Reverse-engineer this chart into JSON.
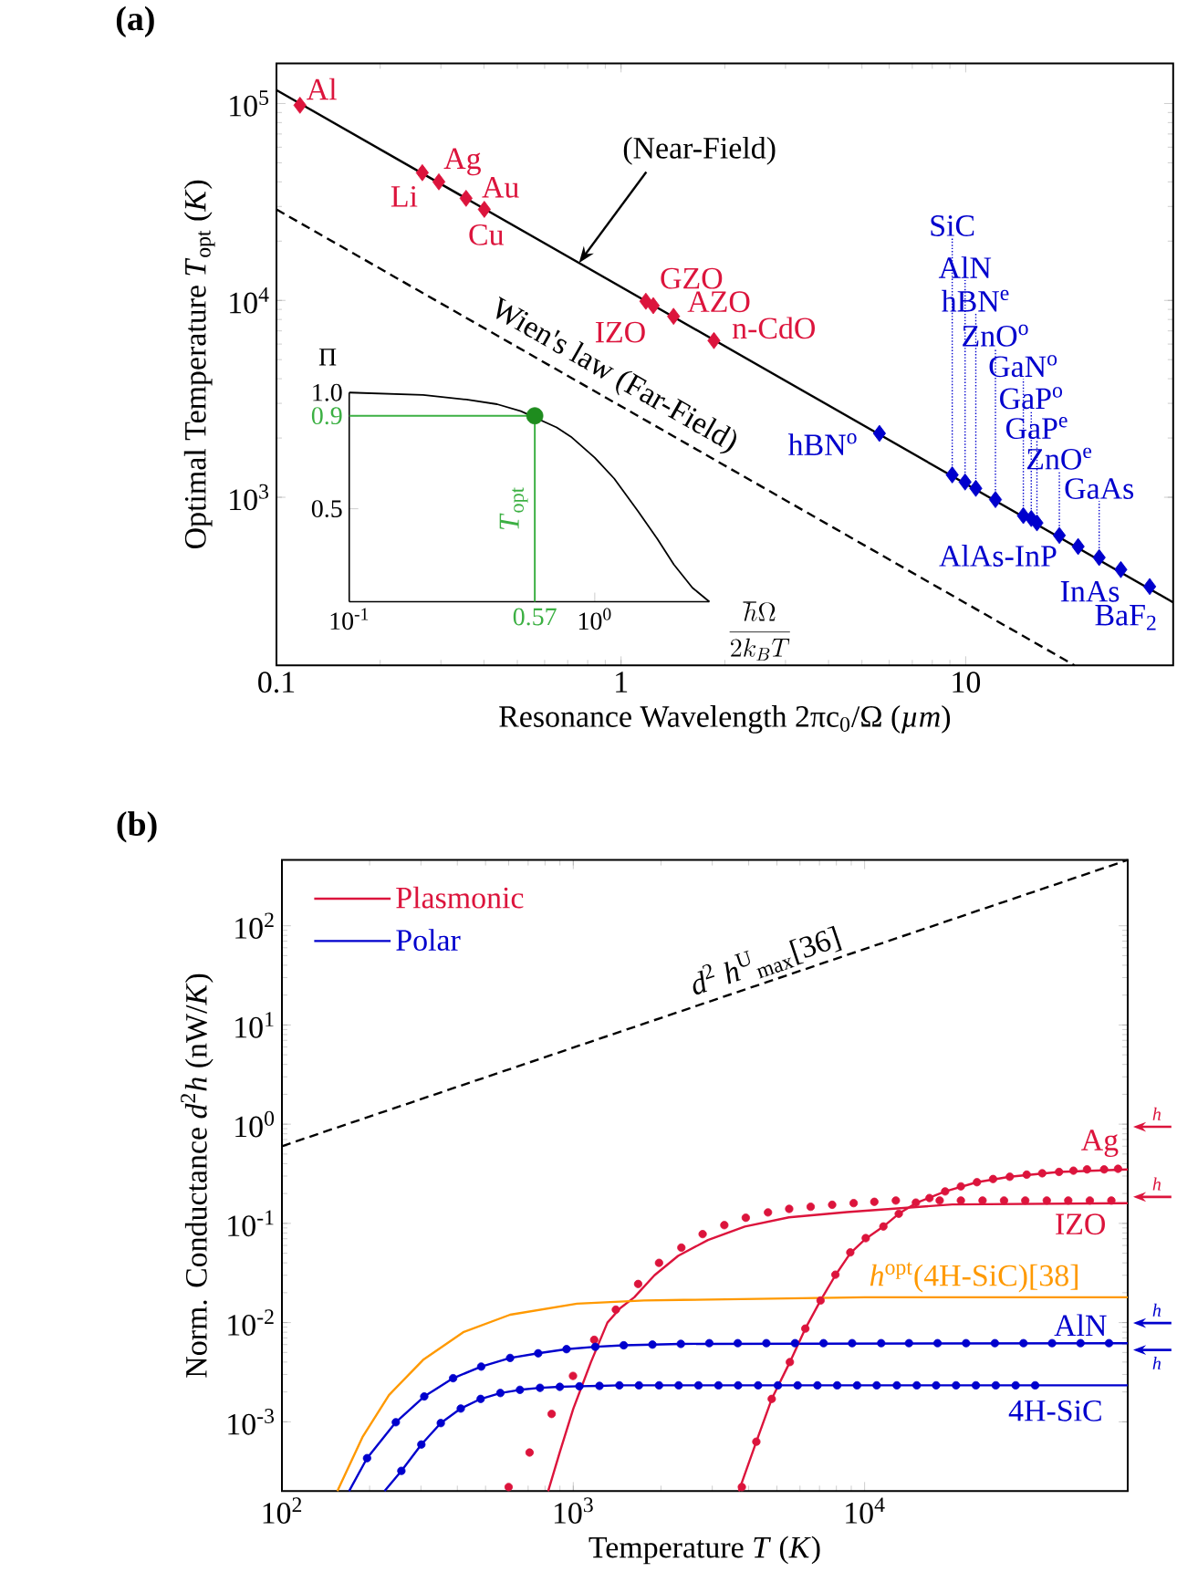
{
  "chart_data": [
    {
      "type": "scatter",
      "title": "(a)",
      "xlabel": "Resonance Wavelength 2πc$_{0}$/Ω (*µm*)",
      "ylabel": "Optimal Temperature *T*$_{opt}$ (*K*)",
      "log": "xy",
      "xlim": [
        0.1,
        40
      ],
      "ylim": [
        140,
        160000
      ],
      "xticks": [
        {
          "value": 0.1,
          "label": "0.1"
        },
        {
          "value": 1,
          "label": "1"
        },
        {
          "value": 10,
          "label": "10"
        }
      ],
      "yticks": [
        {
          "value": 1000,
          "label": "10$^{3}$"
        },
        {
          "value": 10000,
          "label": "10$^{4}$"
        },
        {
          "value": 100000,
          "label": "10$^{5}$"
        }
      ],
      "series": [
        {
          "type": "line",
          "color": "#000000",
          "marker": "none",
          "line_style": "solid",
          "x": [
            0.1,
            40
          ],
          "values": [
            117000,
            292.5
          ]
        },
        {
          "type": "line",
          "color": "#000000",
          "marker": "none",
          "line_style": "dashed",
          "x": [
            0.1,
            20.7
          ],
          "values": [
            28980,
            140
          ]
        },
        {
          "color": "#dc143c",
          "marker": "diamond",
          "x": [
            0.117,
            0.265,
            0.296,
            0.355,
            0.401,
            1.18,
            1.24,
            1.42,
            1.86
          ],
          "values": [
            98000,
            44500,
            40000,
            33000,
            29000,
            9900,
            9400,
            8300,
            6250
          ]
        },
        {
          "color": "#0000cd",
          "marker": "diamond",
          "x": [
            5.62,
            9.14,
            9.96,
            10.7,
            12.2,
            14.7,
            15.5,
            16.1,
            18.7,
            21.2,
            24.4,
            28.2,
            34.2
          ],
          "values": [
            2110,
            1300,
            1195,
            1110,
            973,
            807,
            780,
            741,
            640,
            562,
            494,
            429,
            352
          ]
        }
      ],
      "annotations": [
        {
          "text": "(Near-Field)",
          "x": 0.755,
          "y": 15500
        },
        {
          "text": "Wien's law (Far-Field)",
          "x": 0.953,
          "y": 3040
        },
        {
          "text": "Al",
          "x": 0.117,
          "y": 98000
        },
        {
          "text": "Li",
          "x": 0.265,
          "y": 44500
        },
        {
          "text": "Ag",
          "x": 0.296,
          "y": 40000
        },
        {
          "text": "Au",
          "x": 0.355,
          "y": 33000
        },
        {
          "text": "Cu",
          "x": 0.401,
          "y": 29000
        },
        {
          "text": "IZO",
          "x": 1.18,
          "y": 9900
        },
        {
          "text": "GZO",
          "x": 1.24,
          "y": 9400
        },
        {
          "text": "AZO",
          "x": 1.42,
          "y": 8300
        },
        {
          "text": "n-CdO",
          "x": 1.86,
          "y": 6250
        },
        {
          "text": "hBN$^{o}$",
          "x": 5.62,
          "y": 2110
        },
        {
          "text": "AlAs-InP",
          "x": 21.2,
          "y": 562
        },
        {
          "text": "InAs",
          "x": 28.2,
          "y": 429
        },
        {
          "text": "BaF$_{2}$",
          "x": 34.2,
          "y": 352
        },
        {
          "text": "SiC",
          "x": 9.14,
          "y": 1300
        },
        {
          "text": "AlN",
          "x": 9.96,
          "y": 1195
        },
        {
          "text": "hBN$^{e}$",
          "x": 10.7,
          "y": 1110
        },
        {
          "text": "ZnO$^{o}$",
          "x": 12.2,
          "y": 973
        },
        {
          "text": "GaN$^{o}$",
          "x": 14.7,
          "y": 807
        },
        {
          "text": "GaP$^{o}$",
          "x": 15.5,
          "y": 780
        },
        {
          "text": "GaP$^{e}$",
          "x": 16.1,
          "y": 741
        },
        {
          "text": "ZnO$^{e}$",
          "x": 18.7,
          "y": 640
        },
        {
          "text": "GaAs",
          "x": 24.4,
          "y": 494
        }
      ]
    },
    {
      "type": "line",
      "xlabel": "\\frac{\\hbar\\Omega}{2k_BT}",
      "ylabel": "Π",
      "log": "x",
      "xlim": [
        0.1,
        2.93
      ],
      "ylim": [
        0.1,
        1.0
      ],
      "xticks": [
        {
          "value": 0.1,
          "label": "10$^{-1}$"
        },
        {
          "value": 0.57,
          "label": "0.57"
        },
        {
          "value": 1,
          "label": "10$^{0}$"
        }
      ],
      "yticks": [
        {
          "value": 0.5,
          "label": "0.5"
        },
        {
          "value": 0.9,
          "label": "0.9"
        },
        {
          "value": 1,
          "label": "1.0"
        }
      ],
      "series": [
        {
          "color": "#000000",
          "marker": "none",
          "x": [
            0.1,
            0.2,
            0.3,
            0.4,
            0.5,
            0.7,
            0.8,
            1.0,
            1.2,
            1.5,
            1.8,
            2.1,
            2.5,
            2.93
          ],
          "values": [
            1.0,
            0.99,
            0.97,
            0.95,
            0.92,
            0.85,
            0.81,
            0.72,
            0.63,
            0.49,
            0.37,
            0.26,
            0.16,
            0.1
          ]
        },
        {
          "type": "scatter",
          "color": "#1e8c1e",
          "marker": "circle",
          "x": [
            0.57
          ],
          "values": [
            0.9
          ]
        }
      ],
      "ref_lines": [
        {
          "axis": "x",
          "value": 0.57,
          "label": "*T*$_{opt}$",
          "color": "#3cb043"
        },
        {
          "axis": "y",
          "value": 0.9,
          "color": "#3cb043"
        }
      ]
    },
    {
      "type": "line",
      "title": "(b)",
      "xlabel": "Temperature *T* (*K*)",
      "ylabel": "Norm. Conductance *d*$^{2}$*h* (nW/*K*)",
      "log": "xy",
      "xlim": [
        100,
        80000
      ],
      "ylim": [
        0.0002,
        460
      ],
      "legend": "top left",
      "xticks": [
        {
          "value": 100,
          "label": "10$^{2}$"
        },
        {
          "value": 1000,
          "label": "10$^{3}$"
        },
        {
          "value": 10000,
          "label": "10$^{4}$"
        }
      ],
      "yticks": [
        {
          "value": 0.001,
          "label": "10$^{-3}$"
        },
        {
          "value": 0.01,
          "label": "10$^{-2}$"
        },
        {
          "value": 0.1,
          "label": "10$^{-1}$"
        },
        {
          "value": 1,
          "label": "10$^{0}$"
        },
        {
          "value": 10,
          "label": "10$^{1}$"
        },
        {
          "value": 100,
          "label": "10$^{2}$"
        }
      ],
      "series": [
        {
          "name": "Plasmonic",
          "color": "#dc143c",
          "marker": "none",
          "x": [
            820,
            900,
            1000,
            1150,
            1310,
            1450,
            1620,
            1900,
            2290,
            2900,
            3880,
            5500,
            8700,
            20000,
            80000
          ],
          "values": [
            0.0002,
            0.0005,
            0.00135,
            0.004,
            0.01,
            0.014,
            0.018,
            0.03,
            0.047,
            0.068,
            0.093,
            0.115,
            0.13,
            0.155,
            0.16
          ]
        },
        {
          "name": "Polar",
          "color": "#0000cd",
          "marker": "none",
          "x": [
            170,
            196,
            246,
            308,
            387,
            483,
            607,
            758,
            948,
            1190,
            1490,
            1870,
            2340,
            80000
          ],
          "values": [
            0.0002,
            0.00043,
            0.00099,
            0.0018,
            0.00275,
            0.0036,
            0.0044,
            0.0049,
            0.0054,
            0.0057,
            0.0059,
            0.006,
            0.0061,
            0.0062
          ]
        },
        {
          "color": "#dc143c",
          "marker": "none",
          "x": [
            3700,
            4250,
            4800,
            5540,
            6260,
            7060,
            7940,
            8930,
            10090,
            11600,
            13100,
            15000,
            18900,
            24300,
            31500,
            46500,
            80000
          ],
          "values": [
            0.0002,
            0.00063,
            0.0017,
            0.004,
            0.0087,
            0.0167,
            0.03,
            0.05,
            0.07,
            0.093,
            0.125,
            0.16,
            0.21,
            0.26,
            0.295,
            0.33,
            0.35
          ]
        },
        {
          "color": "#0000cd",
          "marker": "none",
          "x": [
            225,
            257,
            301,
            351,
            411,
            481,
            562,
            656,
            769,
            899,
            1050,
            1230,
            1440,
            50000,
            80000
          ],
          "values": [
            0.0002,
            0.00032,
            0.00059,
            0.00097,
            0.00136,
            0.0017,
            0.00195,
            0.0021,
            0.0022,
            0.00225,
            0.00228,
            0.0023,
            0.00233,
            0.00233,
            0.00233
          ]
        },
        {
          "color": "#ff9900",
          "marker": "none",
          "x": [
            155,
            189,
            233,
            305,
            419,
            607,
            1030,
            1750,
            10000,
            30000,
            80000
          ],
          "values": [
            0.0002,
            0.0007,
            0.00186,
            0.0042,
            0.008,
            0.012,
            0.0155,
            0.0167,
            0.018,
            0.018,
            0.018
          ]
        },
        {
          "color": "#000000",
          "marker": "none",
          "line_style": "dashed",
          "x": [
            100,
            80000
          ],
          "values": [
            0.6,
            460
          ]
        },
        {
          "type": "scatter",
          "color": "#dc143c",
          "marker": "circle",
          "x": [
            600,
            708,
            843,
            998,
            1180,
            1400,
            1670,
            1970,
            2350,
            2780,
            3300,
            3910,
            4660,
            5510,
            6530,
            7740,
            9170,
            10800,
            12800,
            15200,
            18100,
            21400,
            25400,
            30100,
            35600,
            42200,
            50000,
            59300,
            70300
          ],
          "values": [
            0.00022,
            0.00049,
            0.0012,
            0.0029,
            0.0067,
            0.0135,
            0.0245,
            0.04,
            0.057,
            0.078,
            0.096,
            0.114,
            0.129,
            0.14,
            0.147,
            0.154,
            0.16,
            0.165,
            0.17,
            null,
            0.17,
            0.17,
            0.17,
            0.17,
            0.17,
            0.17,
            0.17,
            0.17,
            0.17
          ]
        },
        {
          "type": "scatter",
          "color": "#dc143c",
          "marker": "circle",
          "x": [
            3790,
            4250,
            4800,
            5540,
            6260,
            7060,
            7940,
            8930,
            10090,
            11600,
            13100,
            15000,
            16700,
            18900,
            21400,
            24300,
            27600,
            31500,
            36000,
            40700,
            46500,
            52100,
            58000,
            66400,
            74100
          ],
          "values": [
            0.00022,
            0.00063,
            0.0017,
            0.004,
            0.0087,
            0.0167,
            0.0304,
            0.051,
            0.071,
            0.093,
            0.125,
            0.162,
            0.18,
            0.21,
            0.236,
            0.26,
            0.28,
            0.295,
            0.31,
            0.32,
            0.33,
            0.34,
            0.35,
            0.35,
            0.355
          ]
        },
        {
          "type": "scatter",
          "color": "#0000cd",
          "marker": "circle",
          "x": [
            196,
            246,
            308,
            387,
            483,
            607,
            758,
            948,
            1190,
            1490,
            1870,
            2340,
            2930,
            3670,
            4600,
            5770,
            7230,
            9060,
            11400,
            14200,
            17800,
            22300,
            28000,
            35100,
            44000,
            55100,
            69000
          ],
          "values": [
            0.00043,
            0.00099,
            0.0018,
            0.00275,
            0.0036,
            0.0044,
            0.0049,
            0.0054,
            0.0057,
            0.0059,
            0.006,
            0.0061,
            0.0062,
            0.0062,
            0.0062,
            0.0062,
            0.0062,
            0.0062,
            0.0062,
            0.0062,
            0.0062,
            0.0062,
            0.0062,
            0.0062,
            0.0062,
            0.0062,
            0.0062
          ]
        },
        {
          "type": "scatter",
          "color": "#0000cd",
          "marker": "circle",
          "x": [
            257,
            301,
            351,
            411,
            481,
            562,
            656,
            769,
            899,
            1050,
            1230,
            1440,
            1680,
            1970,
            2300,
            2690,
            3150,
            3680,
            4310,
            5040,
            5890,
            6890,
            8050,
            9420,
            11000,
            12900,
            15100,
            17600,
            20600,
            24100,
            28200,
            33000,
            38500
          ],
          "values": [
            0.00032,
            0.00059,
            0.00097,
            0.00136,
            0.0017,
            0.00195,
            0.0021,
            0.0022,
            0.00225,
            0.00228,
            0.0023,
            0.00233,
            0.00233,
            0.00233,
            0.00233,
            0.00233,
            0.00233,
            0.00233,
            0.00233,
            0.00233,
            0.00233,
            0.00233,
            0.00233,
            0.00233,
            0.00233,
            0.00233,
            0.00233,
            0.00233,
            0.00233,
            0.00233,
            0.00233,
            0.00233,
            0.00233
          ]
        }
      ],
      "ref_lines": [
        {
          "axis": "y",
          "value": 0.94,
          "label": "h",
          "color": "#dc143c"
        },
        {
          "axis": "y",
          "value": 0.185,
          "label": "h",
          "color": "#dc143c"
        },
        {
          "axis": "y",
          "value": 0.0099,
          "label": "h",
          "color": "#0000cd"
        },
        {
          "axis": "y",
          "value": 0.0053,
          "label": "h",
          "color": "#0000cd"
        }
      ],
      "annotations": [
        {
          "text": "Ag",
          "x": 74100,
          "y": 0.355
        },
        {
          "text": "IZO",
          "x": 70300,
          "y": 0.17
        },
        {
          "text": "*h*$^{opt}$(4H-SiC)[38]",
          "x": 30000,
          "y": 0.018
        },
        {
          "text": "AlN",
          "x": 55100,
          "y": 0.0062
        },
        {
          "text": "4H-SiC",
          "x": 50000,
          "y": 0.00233
        },
        {
          "text": "*d*$^{2}$ *h*$^{U}$$_{max}$[36]",
          "x": 4560,
          "y": 26.8
        }
      ]
    }
  ]
}
